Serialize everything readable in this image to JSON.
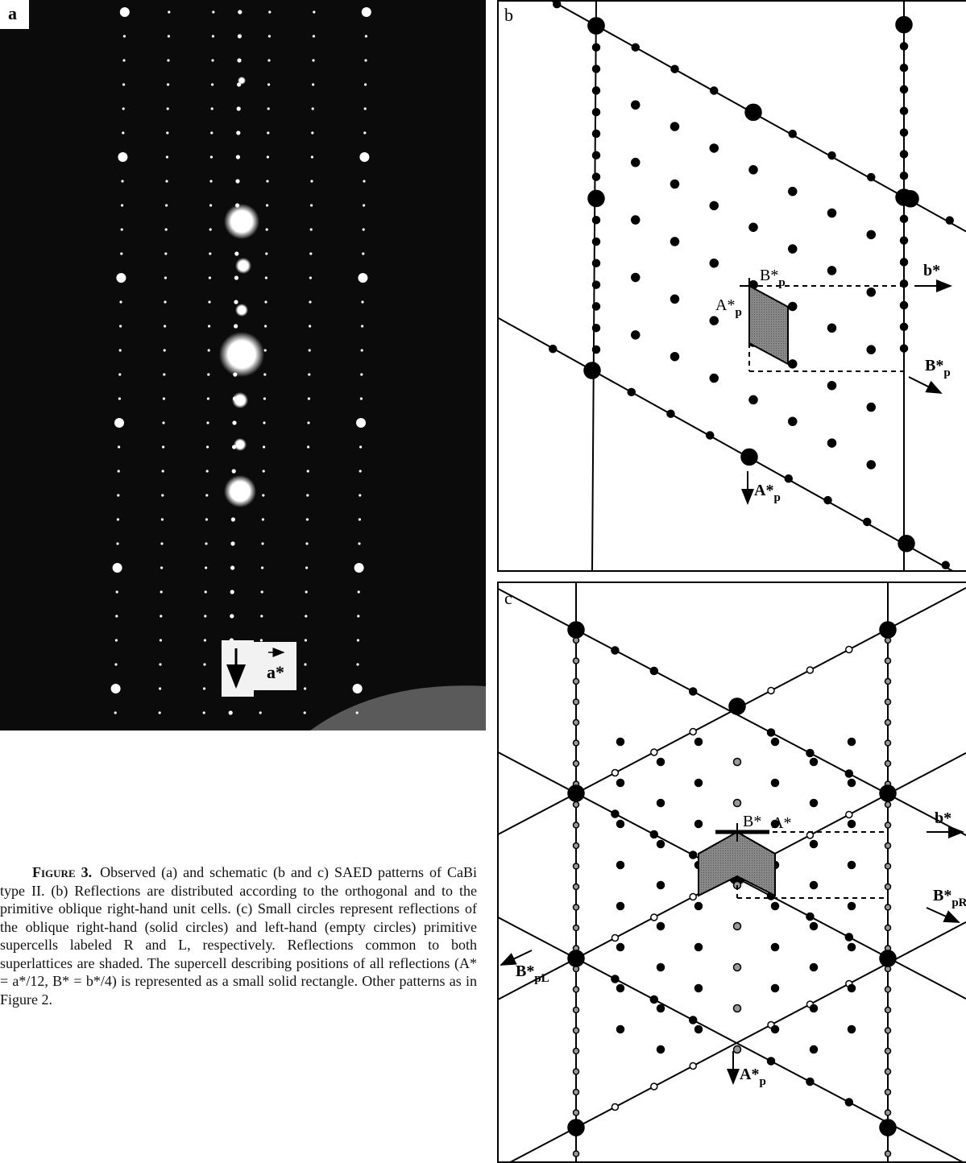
{
  "panels": {
    "a": {
      "label": "a",
      "arrow_label": "a*"
    },
    "b": {
      "label": "b",
      "b_star": "b*",
      "B_p": {
        "main": "B*",
        "sub": "p"
      },
      "B_p_arrow": {
        "main": "B*",
        "sub": "p"
      },
      "A_p": {
        "main": "A*",
        "sub": "p"
      },
      "A_p_arrow": {
        "main": "A*",
        "sub": "p"
      }
    },
    "c": {
      "label": "c",
      "b_star": "b*",
      "B_star": "B*",
      "A_star": "A*",
      "B_pR": {
        "main": "B*",
        "sub": "pR"
      },
      "B_pL": {
        "main": "B*",
        "sub": "pL"
      },
      "A_p_arrow": {
        "main": "A*",
        "sub": "p"
      }
    }
  },
  "caption": {
    "label": "Figure 3.",
    "text": "Observed (a) and schematic (b and c) SAED patterns of CaBi type II. (b) Reflections are distributed according to the orthogonal and to the primitive oblique right-hand unit cells. (c) Small circles represent reflections of the oblique right-hand (solid circles) and left-hand (empty circles) primitive supercells labeled R and L, respectively. Reflections common to both superlattices are shaded. The supercell describing positions of all reflections (A* = a*/12, B* = b*/4) is represented as a small solid rectangle. Other patterns as in Figure 2."
  }
}
